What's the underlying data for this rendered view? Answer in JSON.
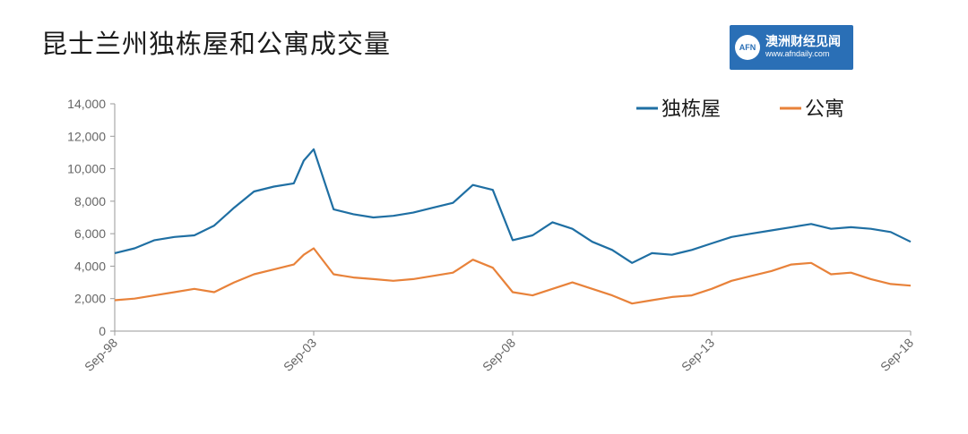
{
  "page": {
    "title": "昆士兰州独栋屋和公寓成交量",
    "logo": {
      "mark": "AFN",
      "name": "澳洲财经见闻",
      "url": "www.afndaily.com"
    }
  },
  "chart_data": {
    "type": "line",
    "title": "昆士兰州独栋屋和公寓成交量",
    "xlabel": "",
    "ylabel": "",
    "ylim": [
      0,
      14000
    ],
    "yticks": [
      0,
      2000,
      4000,
      6000,
      8000,
      10000,
      12000,
      14000
    ],
    "ytick_labels": [
      "0",
      "2,000",
      "4,000",
      "6,000",
      "8,000",
      "10,000",
      "12,000",
      "14,000"
    ],
    "xtick_labels": [
      "Sep-98",
      "Sep-03",
      "Sep-08",
      "Sep-13",
      "Sep-18"
    ],
    "xlim": [
      1998.67,
      2018.67
    ],
    "grid": false,
    "legend_position": "top-right",
    "colors": {
      "house": "#1f6fa3",
      "unit": "#e8823a"
    },
    "x": [
      1998.67,
      1999.17,
      1999.67,
      2000.17,
      2000.67,
      2001.17,
      2001.67,
      2002.17,
      2002.67,
      2003.17,
      2003.42,
      2003.67,
      2004.17,
      2004.67,
      2005.17,
      2005.67,
      2006.17,
      2006.67,
      2007.17,
      2007.67,
      2008.17,
      2008.67,
      2009.17,
      2009.67,
      2010.17,
      2010.67,
      2011.17,
      2011.67,
      2012.17,
      2012.67,
      2013.17,
      2013.67,
      2014.17,
      2014.67,
      2015.17,
      2015.67,
      2016.17,
      2016.67,
      2017.17,
      2017.67,
      2018.17,
      2018.67
    ],
    "series": [
      {
        "name": "独栋屋",
        "values": [
          4800,
          5100,
          5600,
          5800,
          5900,
          6500,
          7600,
          8600,
          8900,
          9100,
          10500,
          11200,
          7500,
          7200,
          7000,
          7100,
          7300,
          7600,
          7900,
          9000,
          8700,
          5600,
          5900,
          6700,
          6300,
          5500,
          5000,
          4200,
          4800,
          4700,
          5000,
          5400,
          5800,
          6000,
          6200,
          6400,
          6600,
          6300,
          6400,
          6300,
          6100,
          5500
        ]
      },
      {
        "name": "公寓",
        "values": [
          1900,
          2000,
          2200,
          2400,
          2600,
          2400,
          3000,
          3500,
          3800,
          4100,
          4700,
          5100,
          3500,
          3300,
          3200,
          3100,
          3200,
          3400,
          3600,
          4400,
          3900,
          2400,
          2200,
          2600,
          3000,
          2600,
          2200,
          1700,
          1900,
          2100,
          2200,
          2600,
          3100,
          3400,
          3700,
          4100,
          4200,
          3500,
          3600,
          3200,
          2900,
          2800
        ]
      }
    ]
  }
}
